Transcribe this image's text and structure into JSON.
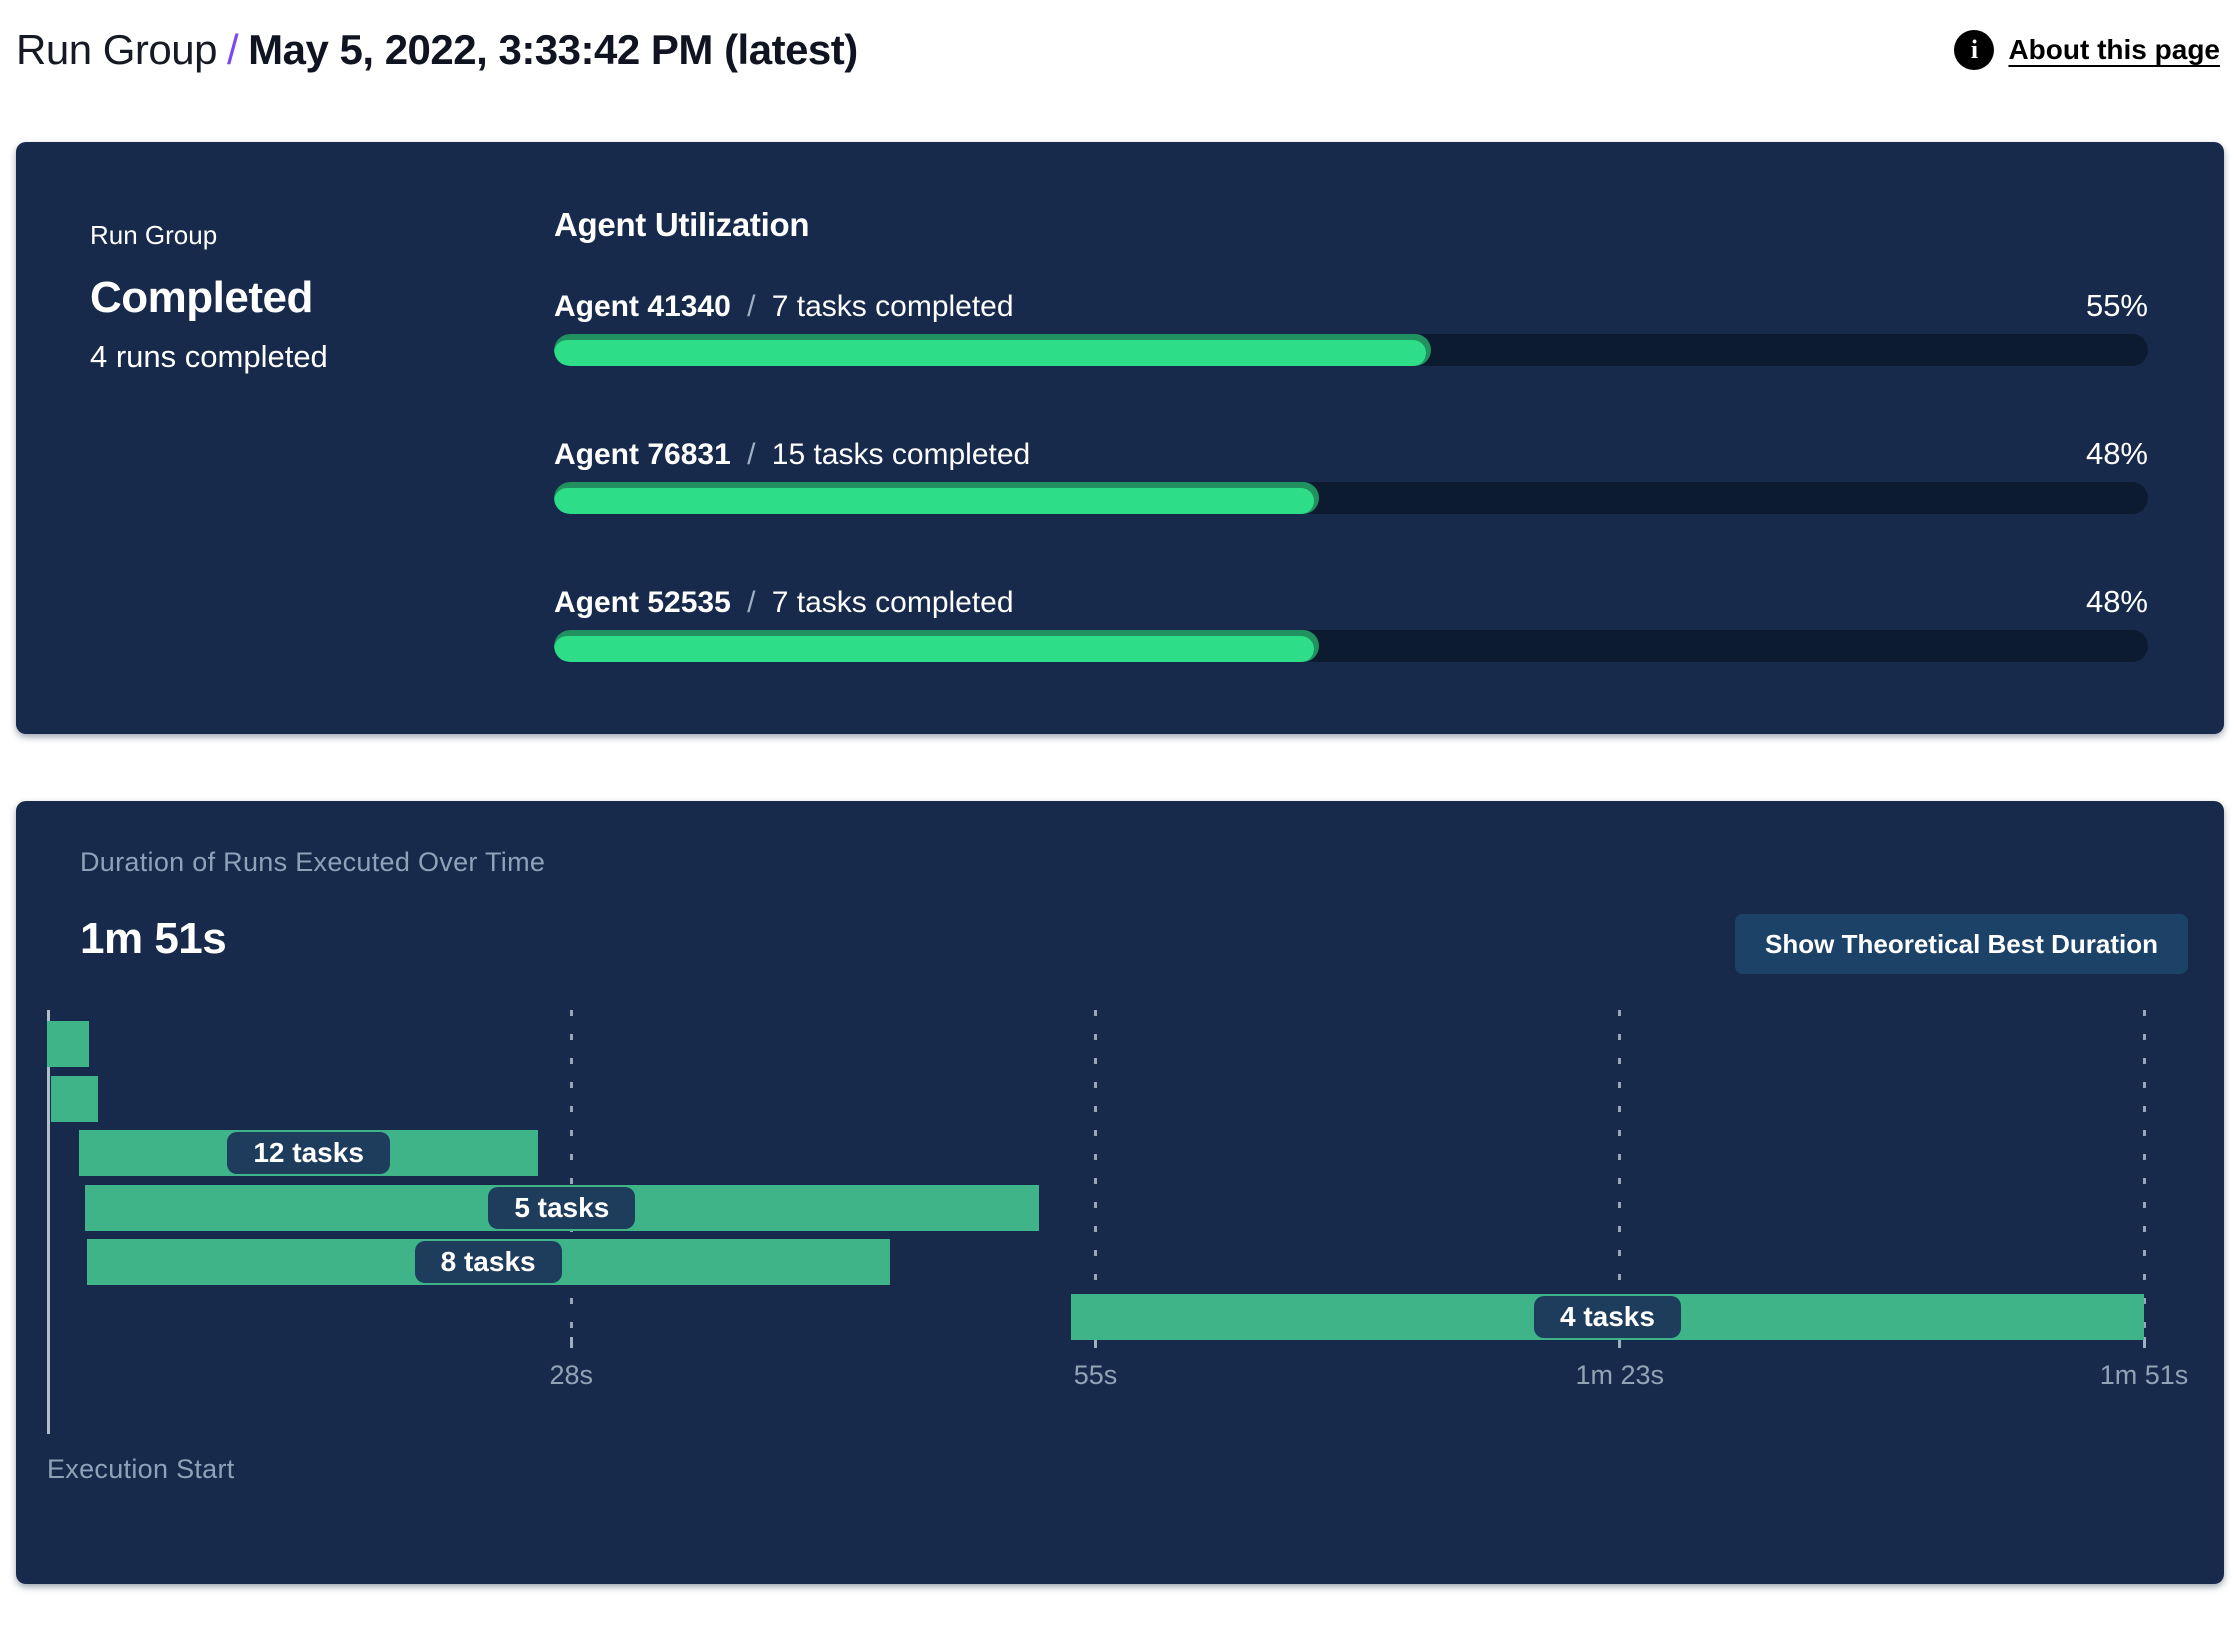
{
  "header": {
    "breadcrumb_root": "Run Group",
    "separator": "/",
    "title": "May 5, 2022, 3:33:42 PM (latest)",
    "info_icon": "i",
    "about_link": "About this page"
  },
  "summary_panel": {
    "label": "Run Group",
    "status": "Completed",
    "subtitle": "4 runs completed",
    "utilization": {
      "heading": "Agent Utilization",
      "agents": [
        {
          "name": "Agent 41340",
          "separator": "/",
          "tasks": "7 tasks completed",
          "percent_label": "55%",
          "percent": 55
        },
        {
          "name": "Agent 76831",
          "separator": "/",
          "tasks": "15 tasks completed",
          "percent_label": "48%",
          "percent": 48
        },
        {
          "name": "Agent 52535",
          "separator": "/",
          "tasks": "7 tasks completed",
          "percent_label": "48%",
          "percent": 48
        }
      ]
    }
  },
  "duration_panel": {
    "heading": "Duration of Runs Executed Over Time",
    "total_duration": "1m 51s",
    "button_label": "Show Theoretical Best Duration",
    "axis_label": "Execution Start"
  },
  "chart_data": {
    "type": "bar",
    "subtype": "gantt-timeline",
    "title": "Duration of Runs Executed Over Time",
    "total_duration_label": "1m 51s",
    "total_duration_s": 111,
    "x_axis_start_label": "Execution Start",
    "x_ticks": [
      {
        "label": "28s",
        "s": 27.75
      },
      {
        "label": "55s",
        "s": 55.5
      },
      {
        "label": "1m 23s",
        "s": 83.25
      },
      {
        "label": "1m 51s",
        "s": 111
      }
    ],
    "runs": [
      {
        "label": "",
        "start_s": 0,
        "end_s": 2.2
      },
      {
        "label": "",
        "start_s": 0.2,
        "end_s": 2.7
      },
      {
        "label": "12 tasks",
        "start_s": 1.7,
        "end_s": 26
      },
      {
        "label": "5 tasks",
        "start_s": 2.0,
        "end_s": 52.5
      },
      {
        "label": "8 tasks",
        "start_s": 2.1,
        "end_s": 44.6
      },
      {
        "label": "4 tasks",
        "start_s": 54.2,
        "end_s": 111
      }
    ],
    "grid": "vertical-dashed",
    "legend": "none"
  },
  "colors": {
    "accent_purple": "#7a4af0",
    "panel_bg": "#172a4b",
    "track_bg": "#0d1b30",
    "progress_green": "#2edd88",
    "progress_green_dark": "#219160",
    "gantt_green": "#3eb488",
    "pill_bg": "#1e3d5c",
    "button_bg": "#1d4268",
    "muted_text": "#8ea2b8"
  }
}
